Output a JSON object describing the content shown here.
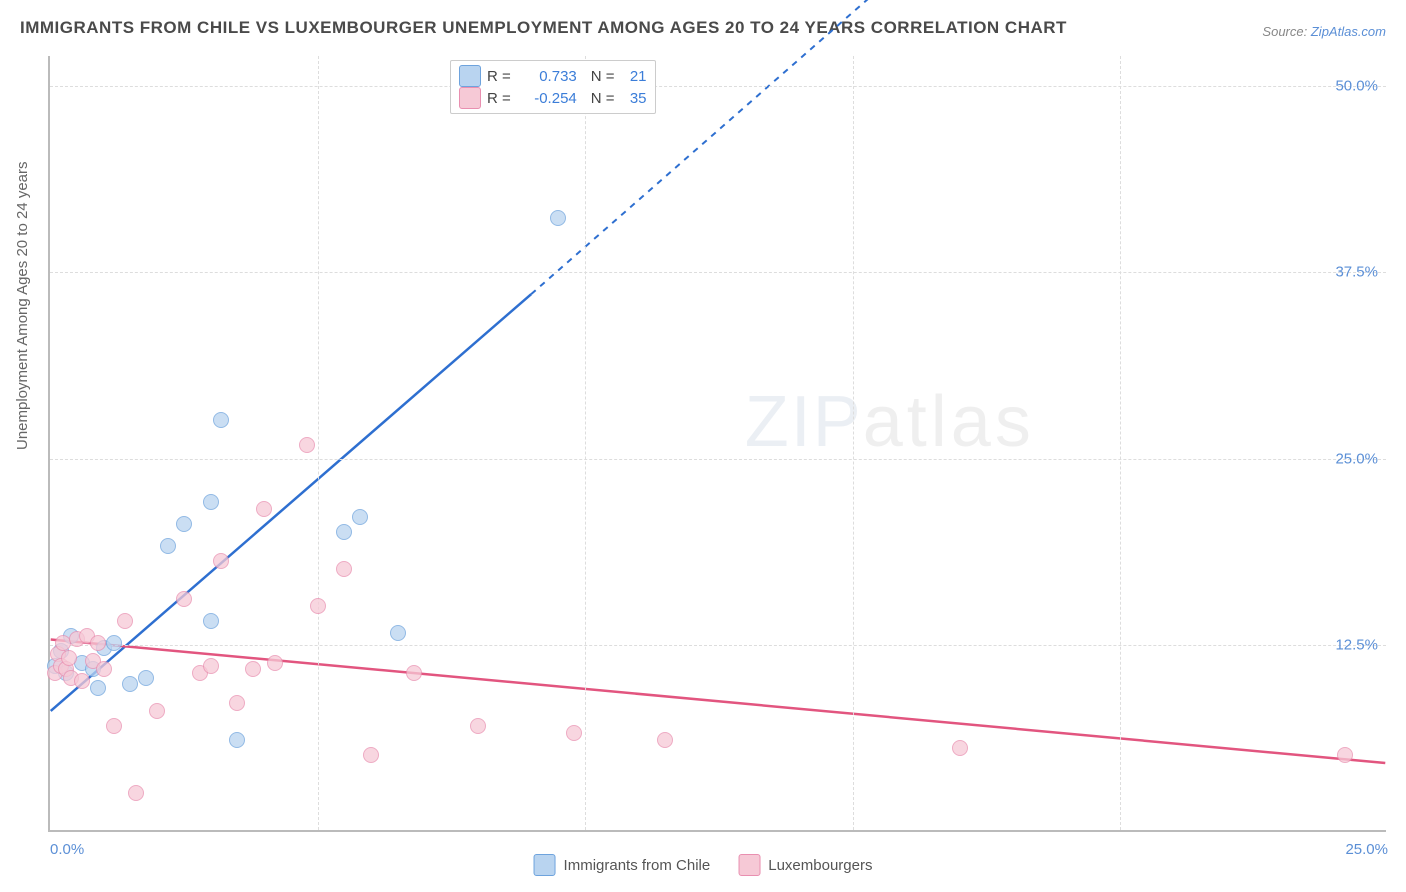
{
  "title": "IMMIGRANTS FROM CHILE VS LUXEMBOURGER UNEMPLOYMENT AMONG AGES 20 TO 24 YEARS CORRELATION CHART",
  "source_label": "Source:",
  "source_link": "ZipAtlas.com",
  "ylabel": "Unemployment Among Ages 20 to 24 years",
  "watermark_zip": "ZIP",
  "watermark_atlas": "atlas",
  "legend_top": {
    "rows": [
      {
        "swatch_fill": "#b9d4f0",
        "swatch_border": "#6ea3dd",
        "r_label": "R =",
        "r_val": "0.733",
        "n_label": "N =",
        "n_val": "21"
      },
      {
        "swatch_fill": "#f6c9d6",
        "swatch_border": "#e98fb0",
        "r_label": "R =",
        "r_val": "-0.254",
        "n_label": "N =",
        "n_val": "35"
      }
    ]
  },
  "legend_bottom": {
    "items": [
      {
        "swatch_fill": "#b9d4f0",
        "swatch_border": "#6ea3dd",
        "label": "Immigrants from Chile"
      },
      {
        "swatch_fill": "#f6c9d6",
        "swatch_border": "#e98fb0",
        "label": "Luxembourgers"
      }
    ]
  },
  "axes": {
    "xlim": [
      0,
      25
    ],
    "ylim": [
      0,
      52
    ],
    "yticks": [
      {
        "v": 12.5,
        "label": "12.5%"
      },
      {
        "v": 25.0,
        "label": "25.0%"
      },
      {
        "v": 37.5,
        "label": "37.5%"
      },
      {
        "v": 50.0,
        "label": "50.0%"
      }
    ],
    "xticks": [
      {
        "v": 0,
        "label": "0.0%",
        "cls": "first"
      },
      {
        "v": 25,
        "label": "25.0%",
        "cls": "last"
      }
    ],
    "x_gridlines": [
      5,
      10,
      15,
      20
    ],
    "grid_color": "#dddddd"
  },
  "series": [
    {
      "name": "chile",
      "fill": "#b9d4f0",
      "border": "#6ea3dd",
      "marker_size": 16,
      "regression": {
        "x1": 0,
        "y1": 8.0,
        "x2": 9.0,
        "y2": 36.0,
        "dash_x2": 16.0,
        "dash_y2": 58.0,
        "color": "#2e6fd0",
        "width": 2.5
      },
      "points": [
        [
          0.1,
          11.0
        ],
        [
          0.2,
          12.0
        ],
        [
          0.3,
          10.5
        ],
        [
          0.4,
          13.0
        ],
        [
          0.6,
          11.2
        ],
        [
          0.8,
          10.8
        ],
        [
          0.9,
          9.5
        ],
        [
          1.0,
          12.2
        ],
        [
          1.2,
          12.5
        ],
        [
          1.5,
          9.8
        ],
        [
          1.8,
          10.2
        ],
        [
          2.2,
          19.0
        ],
        [
          2.5,
          20.5
        ],
        [
          3.0,
          22.0
        ],
        [
          3.0,
          14.0
        ],
        [
          3.2,
          27.5
        ],
        [
          3.5,
          6.0
        ],
        [
          5.5,
          20.0
        ],
        [
          5.8,
          21.0
        ],
        [
          6.5,
          13.2
        ],
        [
          9.5,
          41.0
        ]
      ]
    },
    {
      "name": "lux",
      "fill": "#f6c9d6",
      "border": "#e98fb0",
      "marker_size": 16,
      "regression": {
        "x1": 0,
        "y1": 12.8,
        "x2": 25,
        "y2": 4.5,
        "color": "#e2557f",
        "width": 2.5
      },
      "points": [
        [
          0.1,
          10.5
        ],
        [
          0.15,
          11.8
        ],
        [
          0.2,
          11.0
        ],
        [
          0.25,
          12.5
        ],
        [
          0.3,
          10.8
        ],
        [
          0.35,
          11.5
        ],
        [
          0.4,
          10.2
        ],
        [
          0.5,
          12.8
        ],
        [
          0.6,
          10.0
        ],
        [
          0.7,
          13.0
        ],
        [
          0.8,
          11.3
        ],
        [
          0.9,
          12.5
        ],
        [
          1.0,
          10.8
        ],
        [
          1.2,
          7.0
        ],
        [
          1.4,
          14.0
        ],
        [
          1.6,
          2.5
        ],
        [
          2.0,
          8.0
        ],
        [
          2.5,
          15.5
        ],
        [
          2.8,
          10.5
        ],
        [
          3.0,
          11.0
        ],
        [
          3.2,
          18.0
        ],
        [
          3.5,
          8.5
        ],
        [
          3.8,
          10.8
        ],
        [
          4.0,
          21.5
        ],
        [
          4.2,
          11.2
        ],
        [
          4.8,
          25.8
        ],
        [
          5.0,
          15.0
        ],
        [
          5.5,
          17.5
        ],
        [
          6.0,
          5.0
        ],
        [
          6.8,
          10.5
        ],
        [
          8.0,
          7.0
        ],
        [
          9.8,
          6.5
        ],
        [
          11.5,
          6.0
        ],
        [
          17.0,
          5.5
        ],
        [
          24.2,
          5.0
        ]
      ]
    }
  ]
}
